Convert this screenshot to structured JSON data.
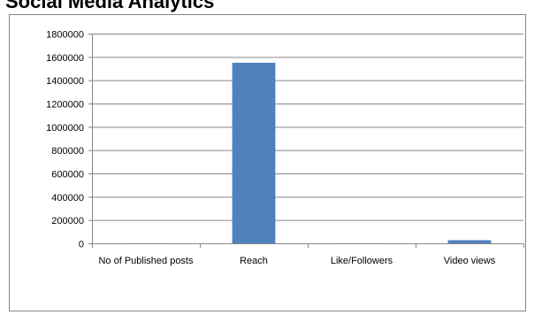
{
  "page_title": "Social Media Analytics",
  "chart_data": {
    "type": "bar",
    "title": "",
    "xlabel": "",
    "ylabel": "",
    "categories": [
      "No of Published posts",
      "Reach",
      "Like/Followers",
      "Video views"
    ],
    "series": [
      {
        "values": [
          200,
          1550000,
          500,
          27000
        ]
      }
    ],
    "ylim": [
      0,
      1800000
    ],
    "yticks": [
      0,
      200000,
      400000,
      600000,
      800000,
      1000000,
      1200000,
      1400000,
      1600000,
      1800000
    ],
    "grid": true,
    "legend": "none",
    "bar_color": "#4f81bd",
    "grid_color": "#868686",
    "axis_color": "#868686"
  }
}
